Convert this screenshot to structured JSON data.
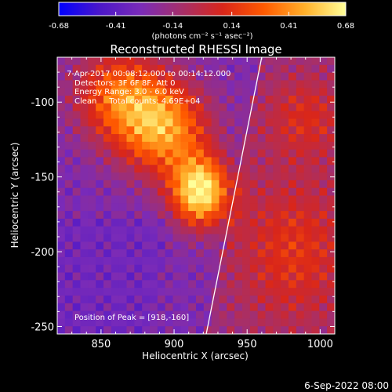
{
  "colorbar": {
    "ticks": [
      "-0.68",
      "-0.41",
      "-0.14",
      "0.14",
      "0.41",
      "0.68"
    ],
    "tick_values": [
      -0.68,
      -0.41,
      -0.14,
      0.14,
      0.41,
      0.68
    ],
    "range": [
      -0.68,
      0.68
    ],
    "units": "(photons cm⁻² s⁻¹ asec⁻²)",
    "colors": [
      "#0000ff",
      "#4b17c9",
      "#7a2bb8",
      "#a62f6a",
      "#d9261a",
      "#ff5a00",
      "#ffb02a",
      "#ffff99"
    ]
  },
  "chart_data": {
    "type": "heatmap",
    "title": "Reconstructed RHESSI Image",
    "xlabel": "Heliocentric X (arcsec)",
    "ylabel": "Heliocentric Y (arcsec)",
    "xlim": [
      820,
      1010
    ],
    "ylim": [
      -255,
      -70
    ],
    "xticks": [
      850,
      900,
      950,
      1000
    ],
    "yticks": [
      -250,
      -200,
      -150,
      -100
    ],
    "xtick_labels": [
      "850",
      "900",
      "950",
      "1000"
    ],
    "ytick_labels": [
      "-250",
      "-200",
      "-150",
      "-100"
    ],
    "annotations": [
      "7-Apr-2017 00:08:12.000 to 00:14:12.000",
      "Detectors: 3F 6F 8F, Att 0",
      "Energy Range: 3.0 - 6.0 keV",
      "Clean     Total counts: 4.69E+04"
    ],
    "peak_label": "Position of Peak = [918,-160]",
    "peak": [
      918,
      -160
    ],
    "sources": [
      {
        "x": 918,
        "y": -160,
        "amp": 0.95,
        "sx": 14,
        "sy": 16
      },
      {
        "x": 893,
        "y": -118,
        "amp": 0.7,
        "sx": 22,
        "sy": 22
      },
      {
        "x": 862,
        "y": -95,
        "amp": 0.55,
        "sx": 22,
        "sy": 22
      },
      {
        "x": 990,
        "y": -110,
        "amp": 0.25,
        "sx": 20,
        "sy": 20
      },
      {
        "x": 982,
        "y": -200,
        "amp": 0.3,
        "sx": 28,
        "sy": 35
      }
    ],
    "limb": {
      "x_top": 960,
      "y_top": -70,
      "x_bottom": 922,
      "y_bottom": -255
    }
  },
  "footer": {
    "date": "6-Sep-2022 08:00"
  }
}
